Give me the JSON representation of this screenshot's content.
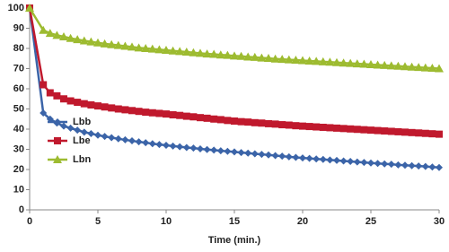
{
  "chart_data": {
    "type": "line",
    "xlabel": "Time (min.)",
    "x": [
      0,
      1,
      1.5,
      2,
      2.5,
      3,
      3.5,
      4,
      4.5,
      5,
      5.5,
      6,
      6.5,
      7,
      7.5,
      8,
      8.5,
      9,
      9.5,
      10,
      10.5,
      11,
      11.5,
      12,
      12.5,
      13,
      13.5,
      14,
      14.5,
      15,
      15.5,
      16,
      16.5,
      17,
      17.5,
      18,
      18.5,
      19,
      19.5,
      20,
      20.5,
      21,
      21.5,
      22,
      22.5,
      23,
      23.5,
      24,
      24.5,
      25,
      25.5,
      26,
      26.5,
      27,
      27.5,
      28,
      28.5,
      29,
      29.5,
      30
    ],
    "series": [
      {
        "name": "Lbb",
        "color": "#3b64a8",
        "marker": "diamond",
        "values": [
          100,
          48,
          45,
          43,
          41.5,
          40.5,
          39.5,
          38.5,
          37.8,
          37,
          36.4,
          35.8,
          35.2,
          34.7,
          34.2,
          33.7,
          33.3,
          32.8,
          32.4,
          32,
          31.6,
          31.3,
          30.9,
          30.6,
          30.2,
          29.9,
          29.6,
          29.3,
          29,
          28.7,
          28.4,
          28.1,
          27.8,
          27.5,
          27.2,
          26.9,
          26.6,
          26.3,
          26,
          25.7,
          25.5,
          25.2,
          25,
          24.7,
          24.5,
          24.2,
          24,
          23.7,
          23.5,
          23.2,
          23,
          22.8,
          22.6,
          22.3,
          22.1,
          21.9,
          21.7,
          21.5,
          21.2,
          21
        ]
      },
      {
        "name": "Lbe",
        "color": "#c0192d",
        "marker": "square",
        "values": [
          100,
          62,
          58,
          56.5,
          55,
          54,
          53.3,
          52.6,
          52,
          51.5,
          51,
          50.5,
          50,
          49.6,
          49.2,
          48.8,
          48.4,
          48.1,
          47.8,
          47.5,
          47.1,
          46.8,
          46.4,
          46.1,
          45.7,
          45.4,
          45,
          44.7,
          44.3,
          44,
          43.7,
          43.5,
          43.2,
          43,
          42.7,
          42.5,
          42.2,
          42,
          41.7,
          41.5,
          41.3,
          41.1,
          40.9,
          40.7,
          40.5,
          40.3,
          40.1,
          39.9,
          39.7,
          39.5,
          39.3,
          39.1,
          38.9,
          38.7,
          38.5,
          38.3,
          38.1,
          37.9,
          37.7,
          37.5
        ]
      },
      {
        "name": "Lbn",
        "color": "#9dbb30",
        "marker": "triangle",
        "values": [
          100,
          89,
          87.5,
          86.5,
          85.8,
          85,
          84.4,
          83.8,
          83.3,
          82.8,
          82.3,
          81.9,
          81.5,
          81.1,
          80.7,
          80.3,
          80,
          79.7,
          79.4,
          79.1,
          78.8,
          78.5,
          78.2,
          77.9,
          77.6,
          77.3,
          77.1,
          76.8,
          76.6,
          76.3,
          76.1,
          75.8,
          75.6,
          75.3,
          75.1,
          74.8,
          74.6,
          74.4,
          74.2,
          74,
          73.8,
          73.6,
          73.4,
          73.2,
          73,
          72.8,
          72.6,
          72.4,
          72.2,
          72,
          71.8,
          71.6,
          71.4,
          71.2,
          71,
          70.8,
          70.6,
          70.4,
          70.2,
          70
        ]
      }
    ],
    "xlim": [
      0,
      30
    ],
    "xticks": [
      0,
      5,
      10,
      15,
      20,
      25,
      30
    ],
    "ylim": [
      0,
      100
    ],
    "yticks": [
      0,
      10,
      20,
      30,
      40,
      50,
      60,
      70,
      80,
      90,
      100
    ],
    "grid": false,
    "legend": "lower left"
  }
}
